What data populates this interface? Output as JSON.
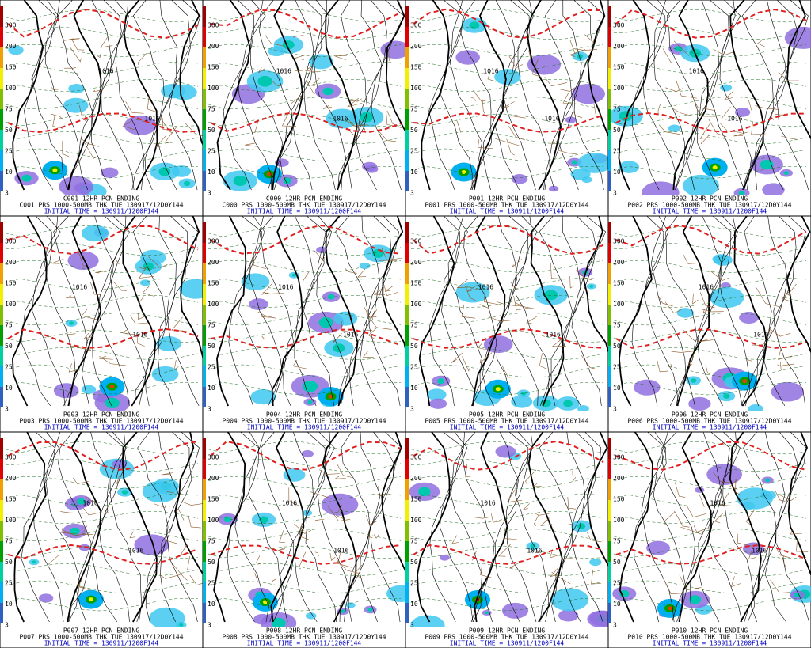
{
  "legend_scale": [
    "300",
    "200",
    "150",
    "100",
    "75",
    "50",
    "25",
    "10",
    "3"
  ],
  "panels": [
    {
      "caption": "C001 12HR PCN ENDING",
      "line1": "C001 PRS 1000-500MB THK TUE 130917/12D0Y144",
      "line2": "INITIAL TIME = 130911/1200F144",
      "contour_labels": [
        "1016",
        "1016"
      ]
    },
    {
      "caption": "C000 12HR PCN ENDING",
      "line1": "C000 PRS 1000-500MB THK TUE 130917/12D0Y144",
      "line2": "INITIAL TIME = 130911/1200F144",
      "contour_labels": [
        "1016",
        "1016"
      ]
    },
    {
      "caption": "P001 12HR PCN ENDING",
      "line1": "P001 PRS 1000-500MB THK TUE 130917/12D0Y144",
      "line2": "INITIAL TIME = 130911/1200F144",
      "contour_labels": [
        "1016",
        "1016"
      ]
    },
    {
      "caption": "P002 12HR PCN ENDING",
      "line1": "P002 PRS 1000-500MB THK TUE 130917/12D0Y144",
      "line2": "INITIAL TIME = 130911/1200F144",
      "contour_labels": [
        "1016",
        "1016"
      ]
    },
    {
      "caption": "P003 12HR PCN ENDING",
      "line1": "P003 PRS 1000-500MB THK TUE 130917/12D0Y144",
      "line2": "INITIAL TIME = 130911/1200F144",
      "contour_labels": [
        "1016",
        "1016"
      ]
    },
    {
      "caption": "P004 12HR PCN ENDING",
      "line1": "P004 PRS 1000-500MB THK TUE 130917/12D0Y144",
      "line2": "INITIAL TIME = 130911/1200F144",
      "contour_labels": [
        "1016",
        "1016"
      ]
    },
    {
      "caption": "P005 12HR PCN ENDING",
      "line1": "P005 PRS 1000-500MB THK TUE 130917/12D0Y144",
      "line2": "INITIAL TIME = 130911/1200F144",
      "contour_labels": [
        "1016",
        "1016"
      ]
    },
    {
      "caption": "P006 12HR PCN ENDING",
      "line1": "P006 PRS 1000-500MB THK TUE 130917/12D0Y144",
      "line2": "INITIAL TIME = 130911/1200F144",
      "contour_labels": [
        "1016",
        "1016"
      ]
    },
    {
      "caption": "P007 12HR PCN ENDING",
      "line1": "P007 PRS 1000-500MB THK TUE 130917/12D0Y144",
      "line2": "INITIAL TIME = 130911/1200F144",
      "contour_labels": [
        "1016",
        "1016"
      ]
    },
    {
      "caption": "P008 12HR PCN ENDING",
      "line1": "P008 PRS 1000-500MB THK TUE 130917/12D0Y144",
      "line2": "INITIAL TIME = 130911/1200F144",
      "contour_labels": [
        "1016",
        "1016"
      ]
    },
    {
      "caption": "P009 12HR PCN ENDING",
      "line1": "P009 PRS 1000-500MB THK TUE 130917/12D0Y144",
      "line2": "INITIAL TIME = 130911/1200F144",
      "contour_labels": [
        "1016",
        "1016"
      ]
    },
    {
      "caption": "P010 12HR PCN ENDING",
      "line1": "P010 PRS 1000-500MB THK TUE 130917/12D0Y144",
      "line2": "INITIAL TIME = 130911/1200F144",
      "contour_labels": [
        "1016",
        "1016"
      ]
    }
  ]
}
